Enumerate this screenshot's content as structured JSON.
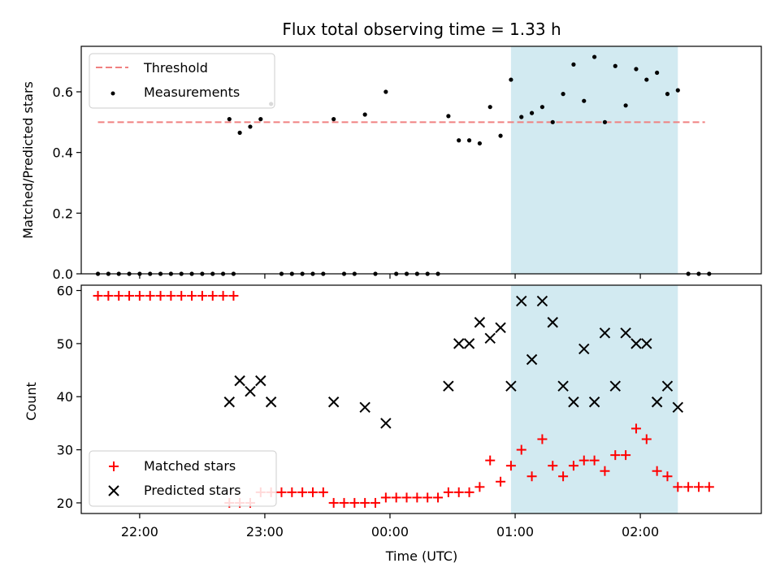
{
  "chart_data": [
    {
      "type": "scatter",
      "title": "Flux total observing time = 1.33 h",
      "xlabel": "",
      "ylabel": "Matched/Predicted stars",
      "ylim": [
        0,
        0.75
      ],
      "xlim": [
        "21:32",
        "02:58"
      ],
      "y_ticks": [
        "0.0",
        "0.2",
        "0.4",
        "0.6"
      ],
      "y_tick_values": [
        0,
        0.2,
        0.4,
        0.6
      ],
      "x_tick_values": [
        "22:00",
        "23:00",
        "00:00",
        "01:00",
        "02:00"
      ],
      "shaded_range": [
        "00:58",
        "02:18"
      ],
      "shade_color": "#add8e6",
      "legend": {
        "placement": "top-left",
        "threshold_label": "Threshold",
        "measurements_label": "Measurements"
      },
      "threshold": {
        "value": 0.5,
        "x_range": [
          "21:40",
          "02:31"
        ],
        "color": "#f08080"
      },
      "series": [
        {
          "name": "Measurements",
          "color": "#000000",
          "points": [
            [
              "21:40",
              0
            ],
            [
              "21:45",
              0
            ],
            [
              "21:50",
              0
            ],
            [
              "21:55",
              0
            ],
            [
              "22:00",
              0
            ],
            [
              "22:05",
              0
            ],
            [
              "22:10",
              0
            ],
            [
              "22:15",
              0
            ],
            [
              "22:20",
              0
            ],
            [
              "22:25",
              0
            ],
            [
              "22:30",
              0
            ],
            [
              "22:35",
              0
            ],
            [
              "22:40",
              0
            ],
            [
              "22:45",
              0
            ],
            [
              "22:43",
              0.51
            ],
            [
              "22:48",
              0.465
            ],
            [
              "22:53",
              0.485
            ],
            [
              "22:58",
              0.51
            ],
            [
              "23:03",
              0.56
            ],
            [
              "23:08",
              0
            ],
            [
              "23:13",
              0
            ],
            [
              "23:18",
              0
            ],
            [
              "23:23",
              0
            ],
            [
              "23:28",
              0
            ],
            [
              "23:33",
              0.51
            ],
            [
              "23:38",
              0
            ],
            [
              "23:43",
              0
            ],
            [
              "23:48",
              0.525
            ],
            [
              "23:53",
              0
            ],
            [
              "23:58",
              0.6
            ],
            [
              "00:03",
              0
            ],
            [
              "00:08",
              0
            ],
            [
              "00:13",
              0
            ],
            [
              "00:18",
              0
            ],
            [
              "00:23",
              0
            ],
            [
              "00:28",
              0.52
            ],
            [
              "00:33",
              0.44
            ],
            [
              "00:38",
              0.44
            ],
            [
              "00:43",
              0.43
            ],
            [
              "00:48",
              0.55
            ],
            [
              "00:53",
              0.455
            ],
            [
              "00:58",
              0.64
            ],
            [
              "01:03",
              0.517
            ],
            [
              "01:08",
              0.53
            ],
            [
              "01:13",
              0.55
            ],
            [
              "01:18",
              0.5
            ],
            [
              "01:23",
              0.593
            ],
            [
              "01:28",
              0.69
            ],
            [
              "01:33",
              0.57
            ],
            [
              "01:38",
              0.715
            ],
            [
              "01:43",
              0.5
            ],
            [
              "01:48",
              0.685
            ],
            [
              "01:53",
              0.555
            ],
            [
              "01:58",
              0.675
            ],
            [
              "02:03",
              0.64
            ],
            [
              "02:08",
              0.663
            ],
            [
              "02:13",
              0.593
            ],
            [
              "02:18",
              0.605
            ],
            [
              "02:23",
              0
            ],
            [
              "02:28",
              0
            ],
            [
              "02:33",
              0
            ]
          ]
        }
      ]
    },
    {
      "type": "scatter",
      "title": "",
      "xlabel": "Time (UTC)",
      "ylabel": "Count",
      "ylim": [
        18,
        61
      ],
      "xlim": [
        "21:32",
        "02:58"
      ],
      "y_ticks": [
        "20",
        "30",
        "40",
        "50",
        "60"
      ],
      "y_tick_values": [
        20,
        30,
        40,
        50,
        60
      ],
      "x_ticks": [
        "22:00",
        "23:00",
        "00:00",
        "01:00",
        "02:00"
      ],
      "x_tick_values": [
        "22:00",
        "23:00",
        "00:00",
        "01:00",
        "02:00"
      ],
      "shaded_range": [
        "00:58",
        "02:18"
      ],
      "shade_color": "#add8e6",
      "legend": {
        "placement": "bottom-left"
      },
      "series": [
        {
          "name": "Matched stars",
          "marker": "plus",
          "color": "#ff0000",
          "points": [
            [
              "21:40",
              59
            ],
            [
              "21:45",
              59
            ],
            [
              "21:50",
              59
            ],
            [
              "21:55",
              59
            ],
            [
              "22:00",
              59
            ],
            [
              "22:05",
              59
            ],
            [
              "22:10",
              59
            ],
            [
              "22:15",
              59
            ],
            [
              "22:20",
              59
            ],
            [
              "22:25",
              59
            ],
            [
              "22:30",
              59
            ],
            [
              "22:35",
              59
            ],
            [
              "22:40",
              59
            ],
            [
              "22:45",
              59
            ],
            [
              "22:43",
              20
            ],
            [
              "22:48",
              20
            ],
            [
              "22:53",
              20
            ],
            [
              "22:58",
              22
            ],
            [
              "23:03",
              22
            ],
            [
              "23:08",
              22
            ],
            [
              "23:13",
              22
            ],
            [
              "23:18",
              22
            ],
            [
              "23:23",
              22
            ],
            [
              "23:28",
              22
            ],
            [
              "23:33",
              20
            ],
            [
              "23:38",
              20
            ],
            [
              "23:43",
              20
            ],
            [
              "23:48",
              20
            ],
            [
              "23:53",
              20
            ],
            [
              "23:58",
              21
            ],
            [
              "00:03",
              21
            ],
            [
              "00:08",
              21
            ],
            [
              "00:13",
              21
            ],
            [
              "00:18",
              21
            ],
            [
              "00:23",
              21
            ],
            [
              "00:28",
              22
            ],
            [
              "00:33",
              22
            ],
            [
              "00:38",
              22
            ],
            [
              "00:43",
              23
            ],
            [
              "00:48",
              28
            ],
            [
              "00:53",
              24
            ],
            [
              "00:58",
              27
            ],
            [
              "01:03",
              30
            ],
            [
              "01:08",
              25
            ],
            [
              "01:13",
              32
            ],
            [
              "01:18",
              27
            ],
            [
              "01:23",
              25
            ],
            [
              "01:28",
              27
            ],
            [
              "01:33",
              28
            ],
            [
              "01:38",
              28
            ],
            [
              "01:43",
              26
            ],
            [
              "01:48",
              29
            ],
            [
              "01:53",
              29
            ],
            [
              "01:58",
              34
            ],
            [
              "02:03",
              32
            ],
            [
              "02:08",
              26
            ],
            [
              "02:13",
              25
            ],
            [
              "02:18",
              23
            ],
            [
              "02:23",
              23
            ],
            [
              "02:28",
              23
            ],
            [
              "02:33",
              23
            ]
          ]
        },
        {
          "name": "Predicted stars",
          "marker": "x",
          "color": "#000000",
          "points": [
            [
              "22:43",
              39
            ],
            [
              "22:48",
              43
            ],
            [
              "22:53",
              41
            ],
            [
              "22:58",
              43
            ],
            [
              "23:03",
              39
            ],
            [
              "23:33",
              39
            ],
            [
              "23:48",
              38
            ],
            [
              "23:58",
              35
            ],
            [
              "00:28",
              42
            ],
            [
              "00:33",
              50
            ],
            [
              "00:38",
              50
            ],
            [
              "00:43",
              54
            ],
            [
              "00:48",
              51
            ],
            [
              "00:53",
              53
            ],
            [
              "00:58",
              42
            ],
            [
              "01:03",
              58
            ],
            [
              "01:08",
              47
            ],
            [
              "01:13",
              58
            ],
            [
              "01:18",
              54
            ],
            [
              "01:23",
              42
            ],
            [
              "01:28",
              39
            ],
            [
              "01:33",
              49
            ],
            [
              "01:38",
              39
            ],
            [
              "01:43",
              52
            ],
            [
              "01:48",
              42
            ],
            [
              "01:53",
              52
            ],
            [
              "01:58",
              50
            ],
            [
              "02:03",
              50
            ],
            [
              "02:08",
              39
            ],
            [
              "02:13",
              42
            ],
            [
              "02:18",
              38
            ]
          ]
        }
      ]
    }
  ]
}
